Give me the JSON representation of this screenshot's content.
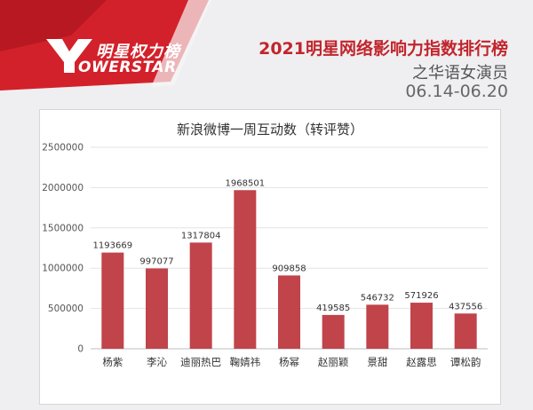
{
  "header": {
    "brand_top": "明星权力榜",
    "brand_bottom": "OWERSTAR",
    "title": "2021明星网络影响力指数排行榜",
    "subtitle": "之华语女演员",
    "date_range": "06.14-06.20"
  },
  "colors": {
    "bar": "#c0444a",
    "accent": "#c2252c",
    "grid": "#e3e3e3"
  },
  "chart_data": {
    "type": "bar",
    "title": "新浪微博一周互动数（转评赞）",
    "categories": [
      "杨紫",
      "李沁",
      "迪丽热巴",
      "鞠婧祎",
      "杨幂",
      "赵丽颖",
      "景甜",
      "赵露思",
      "谭松韵"
    ],
    "values": [
      1193669,
      997077,
      1317804,
      1968501,
      909858,
      419585,
      546732,
      571926,
      437556
    ],
    "value_labels": [
      "1193669",
      "997077",
      "1317804",
      "1968501",
      "909858",
      "419585",
      "546732",
      "571926",
      "437556"
    ],
    "y_ticks": [
      "0",
      "500000",
      "1000000",
      "1500000",
      "2000000",
      "2500000"
    ],
    "ylim": [
      0,
      2500000
    ],
    "grid": true,
    "legend": "none"
  }
}
